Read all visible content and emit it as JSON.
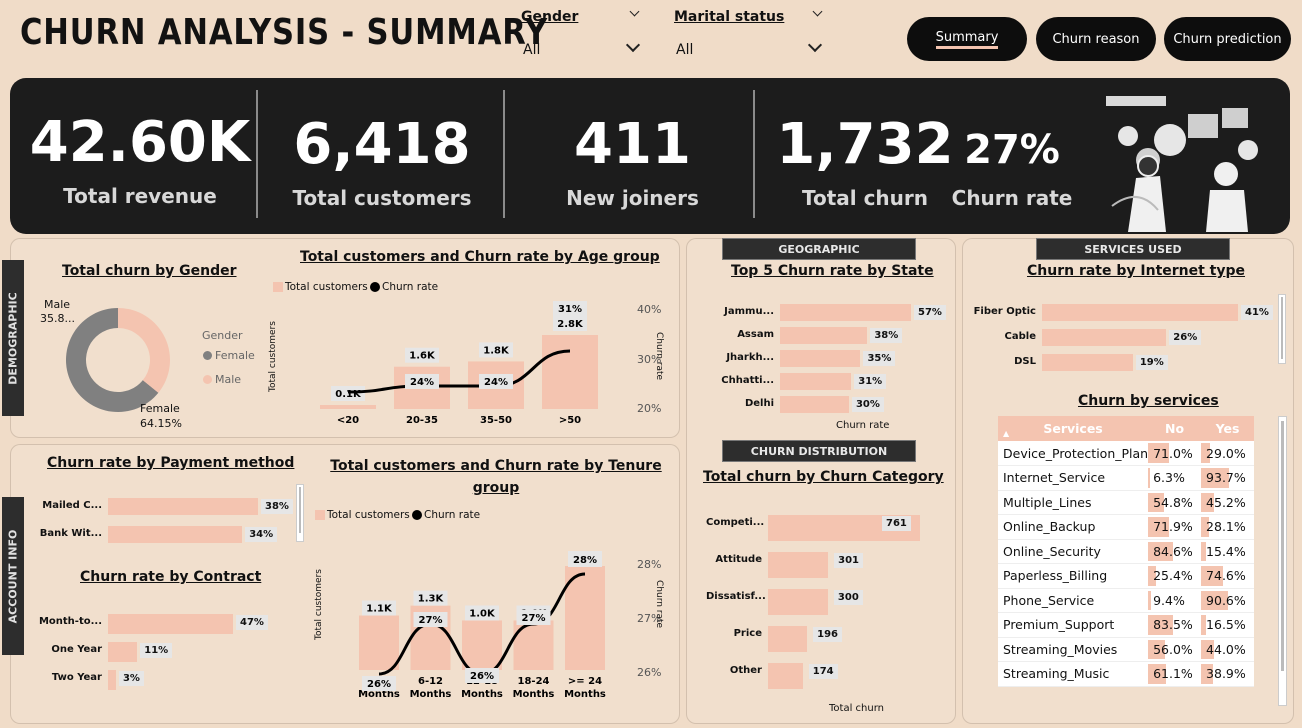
{
  "header": {
    "title": "CHURN ANALYSIS - SUMMARY"
  },
  "filters": [
    {
      "label": "Gender",
      "value": "All"
    },
    {
      "label": "Marital status",
      "value": "All"
    }
  ],
  "nav": [
    "Summary",
    "Churn reason",
    "Churn prediction"
  ],
  "kpis": [
    {
      "value": "42.60K",
      "label": "Total revenue"
    },
    {
      "value": "6,418",
      "label": "Total customers"
    },
    {
      "value": "411",
      "label": "New joiners"
    },
    {
      "value": "1,732",
      "label": "Total  churn"
    },
    {
      "value": "27%",
      "label": "Churn rate"
    }
  ],
  "sections": {
    "demographic": "DEMOGRAPHIC",
    "account": "ACCOUNT INFO",
    "geographic": "GEOGRAPHIC",
    "distribution": "CHURN DISTRIBUTION",
    "services_used": "SERVICES USED"
  },
  "charts": {
    "gender": {
      "title": "Total churn by Gender",
      "legend_title": "Gender",
      "male_label": "Male",
      "male_value": "35.8...",
      "female_label": "Female",
      "female_value": "64.15%",
      "legend": [
        "Female",
        "Male"
      ]
    },
    "age": {
      "title": "Total customers and Churn rate by Age group",
      "legend": [
        "Total customers",
        "Churn rate"
      ],
      "ylabel": "Total customers",
      "y2label": "Churn rate",
      "y2ticks": [
        "40%",
        "30%",
        "20%"
      ]
    },
    "payment": {
      "title": "Churn rate by Payment method"
    },
    "tenure": {
      "title": "Total customers and Churn rate by Tenure group",
      "legend": [
        "Total customers",
        "Churn rate"
      ],
      "ylabel": "Total customers",
      "y2label": "Churn rate",
      "y2ticks": [
        "28%",
        "27%",
        "26%"
      ]
    },
    "contract": {
      "title": "Churn rate by Contract"
    },
    "state": {
      "title": "Top 5 Churn rate by State",
      "xlabel": "Churn rate"
    },
    "category": {
      "title": "Total churn by Churn Category",
      "xlabel": "Total churn"
    },
    "internet": {
      "title": "Churn rate by Internet type"
    },
    "services": {
      "title": "Churn by services",
      "headers": [
        "Services",
        "No",
        "Yes"
      ]
    }
  },
  "chart_data": [
    {
      "type": "pie",
      "title": "Total churn by Gender",
      "categories": [
        "Female",
        "Male"
      ],
      "values": [
        64.15,
        35.85
      ],
      "colors": [
        "#808080",
        "#f4c4b0"
      ]
    },
    {
      "type": "bar",
      "title": "Total customers and Churn rate by Age group",
      "categories": [
        "<20",
        "20-35",
        "35-50",
        ">50"
      ],
      "series": [
        {
          "name": "Total customers",
          "values": [
            0.1,
            1.6,
            1.8,
            2.8
          ],
          "labels": [
            "0.1K",
            "1.6K",
            "1.8K",
            "2.8K"
          ]
        },
        {
          "name": "Churn rate",
          "values": [
            null,
            24,
            24,
            31
          ],
          "labels": [
            "",
            "24%",
            "24%",
            "31%"
          ]
        }
      ],
      "y2lim": [
        20,
        40
      ]
    },
    {
      "type": "bar",
      "title": "Churn rate by Payment method",
      "categories": [
        "Mailed C...",
        "Bank Wit..."
      ],
      "values": [
        38,
        34
      ],
      "labels": [
        "38%",
        "34%"
      ]
    },
    {
      "type": "bar",
      "title": "Total customers and Churn rate by Tenure group",
      "categories": [
        "< 6 Months",
        "6-12 Months",
        "12-18 Months",
        "18-24 Months",
        ">= 24 Months"
      ],
      "series": [
        {
          "name": "Total customers",
          "values": [
            1.1,
            1.3,
            1.0,
            1.0,
            2.1
          ],
          "labels": [
            "1.1K",
            "1.3K",
            "1.0K",
            "1.0K",
            "2.1K"
          ]
        },
        {
          "name": "Churn rate",
          "values": [
            26,
            27,
            26,
            27,
            28
          ],
          "labels": [
            "26%",
            "27%",
            "26%",
            "27%",
            "28%"
          ]
        }
      ],
      "y2lim": [
        26,
        28
      ]
    },
    {
      "type": "bar",
      "title": "Churn rate by Contract",
      "categories": [
        "Month-to...",
        "One Year",
        "Two Year"
      ],
      "values": [
        47,
        11,
        3
      ],
      "labels": [
        "47%",
        "11%",
        "3%"
      ]
    },
    {
      "type": "bar",
      "title": "Top 5 Churn rate by State",
      "categories": [
        "Jammu...",
        "Assam",
        "Jharkh...",
        "Chhatti...",
        "Delhi"
      ],
      "values": [
        57,
        38,
        35,
        31,
        30
      ],
      "labels": [
        "57%",
        "38%",
        "35%",
        "31%",
        "30%"
      ]
    },
    {
      "type": "bar",
      "title": "Total churn by Churn Category",
      "categories": [
        "Competi...",
        "Attitude",
        "Dissatisf...",
        "Price",
        "Other"
      ],
      "values": [
        761,
        301,
        300,
        196,
        174
      ],
      "labels": [
        "761",
        "301",
        "300",
        "196",
        "174"
      ]
    },
    {
      "type": "bar",
      "title": "Churn rate by Internet type",
      "categories": [
        "Fiber Optic",
        "Cable",
        "DSL"
      ],
      "values": [
        41,
        26,
        19
      ],
      "labels": [
        "41%",
        "26%",
        "19%"
      ]
    },
    {
      "type": "table",
      "title": "Churn by services",
      "rows": [
        {
          "service": "Device_Protection_Plan",
          "no": 71.0,
          "yes": 29.0
        },
        {
          "service": "Internet_Service",
          "no": 6.3,
          "yes": 93.7
        },
        {
          "service": "Multiple_Lines",
          "no": 54.8,
          "yes": 45.2
        },
        {
          "service": "Online_Backup",
          "no": 71.9,
          "yes": 28.1
        },
        {
          "service": "Online_Security",
          "no": 84.6,
          "yes": 15.4
        },
        {
          "service": "Paperless_Billing",
          "no": 25.4,
          "yes": 74.6
        },
        {
          "service": "Phone_Service",
          "no": 9.4,
          "yes": 90.6
        },
        {
          "service": "Premium_Support",
          "no": 83.5,
          "yes": 16.5
        },
        {
          "service": "Streaming_Movies",
          "no": 56.0,
          "yes": 44.0
        },
        {
          "service": "Streaming_Music",
          "no": 61.1,
          "yes": 38.9
        }
      ]
    }
  ]
}
